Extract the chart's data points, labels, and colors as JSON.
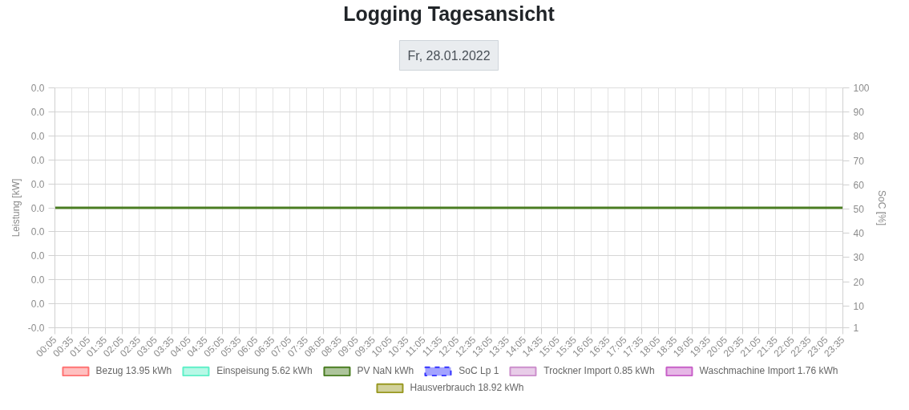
{
  "chart_data": {
    "type": "line",
    "title": "Logging Tagesansicht",
    "subtitle": "Fr, 28.01.2022",
    "ylabel": "Leistung [kW]",
    "y2label": "SoC [%]",
    "x": [
      0.0833,
      23.5833
    ],
    "xlim": [
      0.0833,
      23.5833
    ],
    "xticks": [
      {
        "value": 0.0833,
        "label": "00:05"
      },
      {
        "value": 0.5833,
        "label": "00:35"
      },
      {
        "value": 1.0833,
        "label": "01:05"
      },
      {
        "value": 1.5833,
        "label": "01:35"
      },
      {
        "value": 2.0833,
        "label": "02:05"
      },
      {
        "value": 2.5833,
        "label": "02:35"
      },
      {
        "value": 3.0833,
        "label": "03:05"
      },
      {
        "value": 3.5833,
        "label": "03:35"
      },
      {
        "value": 4.0833,
        "label": "04:05"
      },
      {
        "value": 4.5833,
        "label": "04:35"
      },
      {
        "value": 5.0833,
        "label": "05:05"
      },
      {
        "value": 5.5833,
        "label": "05:35"
      },
      {
        "value": 6.0833,
        "label": "06:05"
      },
      {
        "value": 6.5833,
        "label": "06:35"
      },
      {
        "value": 7.0833,
        "label": "07:05"
      },
      {
        "value": 7.5833,
        "label": "07:35"
      },
      {
        "value": 8.0833,
        "label": "08:05"
      },
      {
        "value": 8.5833,
        "label": "08:35"
      },
      {
        "value": 9.0833,
        "label": "09:05"
      },
      {
        "value": 9.5833,
        "label": "09:35"
      },
      {
        "value": 10.0833,
        "label": "10:05"
      },
      {
        "value": 10.5833,
        "label": "10:35"
      },
      {
        "value": 11.0833,
        "label": "11:05"
      },
      {
        "value": 11.5833,
        "label": "11:35"
      },
      {
        "value": 12.0833,
        "label": "12:05"
      },
      {
        "value": 12.5833,
        "label": "12:35"
      },
      {
        "value": 13.0833,
        "label": "13:05"
      },
      {
        "value": 13.5833,
        "label": "13:35"
      },
      {
        "value": 14.0833,
        "label": "14:05"
      },
      {
        "value": 14.5833,
        "label": "14:35"
      },
      {
        "value": 15.0833,
        "label": "15:05"
      },
      {
        "value": 15.5833,
        "label": "15:35"
      },
      {
        "value": 16.0833,
        "label": "16:05"
      },
      {
        "value": 16.5833,
        "label": "16:35"
      },
      {
        "value": 17.0833,
        "label": "17:05"
      },
      {
        "value": 17.5833,
        "label": "17:35"
      },
      {
        "value": 18.0833,
        "label": "18:05"
      },
      {
        "value": 18.5833,
        "label": "18:35"
      },
      {
        "value": 19.0833,
        "label": "19:05"
      },
      {
        "value": 19.5833,
        "label": "19:35"
      },
      {
        "value": 20.0833,
        "label": "20:05"
      },
      {
        "value": 20.5833,
        "label": "20:35"
      },
      {
        "value": 21.0833,
        "label": "21:05"
      },
      {
        "value": 21.5833,
        "label": "21:35"
      },
      {
        "value": 22.0833,
        "label": "22:05"
      },
      {
        "value": 22.5833,
        "label": "22:35"
      },
      {
        "value": 23.0833,
        "label": "23:05"
      },
      {
        "value": 23.5833,
        "label": "23:35"
      }
    ],
    "ylim": [
      -0.01,
      0.01
    ],
    "yticks": [
      {
        "value": -0.01,
        "label": "-0.0"
      },
      {
        "value": -0.008,
        "label": "0.0"
      },
      {
        "value": -0.006,
        "label": "0.0"
      },
      {
        "value": -0.004,
        "label": "0.0"
      },
      {
        "value": -0.002,
        "label": "0.0"
      },
      {
        "value": 0,
        "label": "0.0"
      },
      {
        "value": 0.002,
        "label": "0.0"
      },
      {
        "value": 0.004,
        "label": "0.0"
      },
      {
        "value": 0.006,
        "label": "0.0"
      },
      {
        "value": 0.008,
        "label": "0.0"
      },
      {
        "value": 0.01,
        "label": "0.0"
      }
    ],
    "y2lim": [
      1,
      100
    ],
    "y2ticks": [
      1,
      10,
      20,
      30,
      40,
      50,
      60,
      70,
      80,
      90,
      100
    ],
    "grid": true,
    "legend": "bottom",
    "series": [
      {
        "name": "Bezug 13.95 kWh",
        "color": "#ff7373",
        "values": [
          null,
          null
        ]
      },
      {
        "name": "Einspeisung 5.62 kWh",
        "color": "#5ff0c8",
        "values": [
          null,
          null
        ]
      },
      {
        "name": "PV NaN kWh",
        "color": "#4a7d22",
        "values": [
          0,
          0
        ]
      },
      {
        "name": "SoC Lp 1",
        "color": "#3333ff",
        "line_style": "dashed",
        "values": [
          null,
          null
        ]
      },
      {
        "name": "Trockner Import 0.85 kWh",
        "color": "#cc8fcc",
        "values": [
          null,
          null
        ]
      },
      {
        "name": "Waschmachine Import 1.76 kWh",
        "color": "#c860c8",
        "values": [
          null,
          null
        ]
      },
      {
        "name": "Hausverbrauch 18.92 kWh",
        "color": "#999922",
        "values": [
          null,
          null
        ]
      }
    ]
  }
}
